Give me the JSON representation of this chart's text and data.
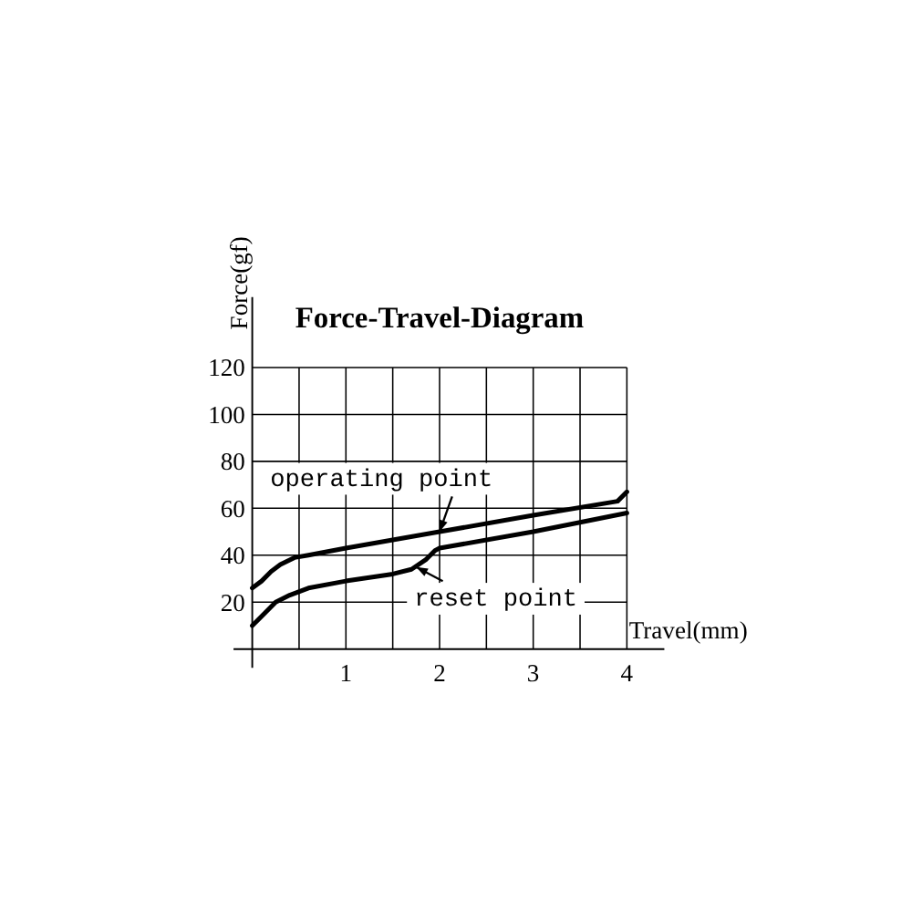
{
  "chart_data": {
    "type": "line",
    "title": "Force-Travel-Diagram",
    "xlabel": "Travel(mm)",
    "ylabel": "Force(gf)",
    "xlim": [
      -0.2,
      4.4
    ],
    "ylim": [
      -8,
      150
    ],
    "xticks": [
      {
        "value": 0.5,
        "label": null
      },
      1,
      {
        "value": 1.5,
        "label": null
      },
      2,
      {
        "value": 2.5,
        "label": null
      },
      3,
      {
        "value": 3.5,
        "label": null
      },
      4
    ],
    "yticks": [
      20,
      40,
      60,
      80,
      100,
      120
    ],
    "grid": true,
    "marker": "none",
    "line_style": "solid",
    "series": [
      {
        "color": "#000000",
        "x": [
          0,
          0.1,
          0.2,
          0.3,
          0.45,
          0.6,
          1,
          2,
          3,
          3.9,
          4
        ],
        "values": [
          26,
          29,
          33,
          36,
          39,
          40,
          43,
          50,
          57,
          63,
          67
        ]
      },
      {
        "color": "#000000",
        "x": [
          0,
          0.1,
          0.25,
          0.4,
          0.6,
          1,
          1.5,
          1.7,
          1.85,
          1.95,
          2,
          3,
          4
        ],
        "values": [
          10,
          14,
          20,
          23,
          26,
          29,
          32,
          34,
          38,
          42,
          43,
          50,
          58
        ]
      }
    ],
    "annotations": [
      {
        "text": "operating point",
        "x": 2,
        "y": 50
      },
      {
        "text": "reset point",
        "x": 1.75,
        "y": 35
      }
    ]
  }
}
